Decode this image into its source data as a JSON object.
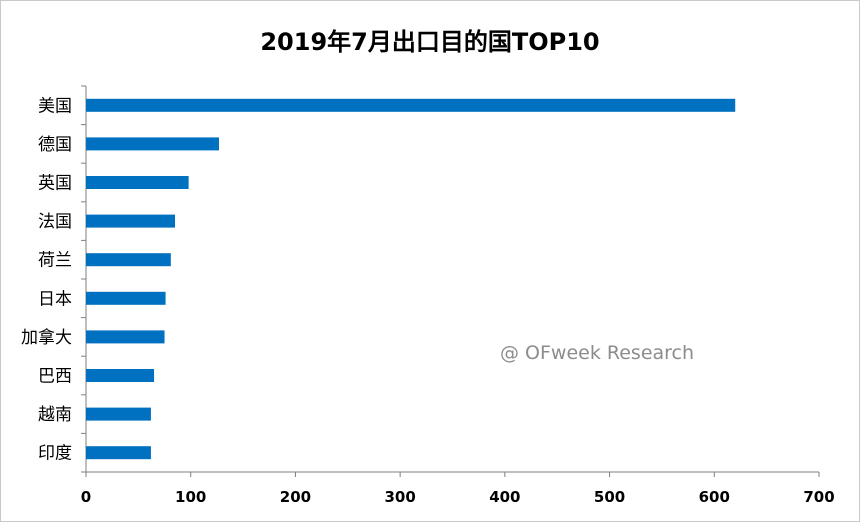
{
  "chart_data": {
    "type": "bar",
    "orientation": "horizontal",
    "title": "2019年7月出口目的国TOP10",
    "categories": [
      "美国",
      "德国",
      "英国",
      "法国",
      "荷兰",
      "日本",
      "加拿大",
      "巴西",
      "越南",
      "印度"
    ],
    "values": [
      620,
      127,
      98,
      85,
      81,
      76,
      75,
      65,
      62,
      62
    ],
    "xlim": [
      0,
      700
    ],
    "xticks": [
      0,
      100,
      200,
      300,
      400,
      500,
      600,
      700
    ],
    "xlabel": "",
    "ylabel": "",
    "grid": false,
    "bar_color": "#0070c0"
  },
  "watermark": "@ OFweek Research"
}
